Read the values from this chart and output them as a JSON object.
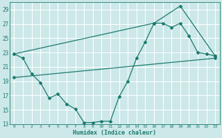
{
  "xlabel": "Humidex (Indice chaleur)",
  "bg_color": "#cce8e8",
  "grid_color": "#ffffff",
  "line_color": "#1a7a6e",
  "xlim": [
    -0.5,
    23.5
  ],
  "ylim": [
    13,
    30
  ],
  "yticks": [
    13,
    15,
    17,
    19,
    21,
    23,
    25,
    27,
    29
  ],
  "xticks": [
    0,
    1,
    2,
    3,
    4,
    5,
    6,
    7,
    8,
    9,
    10,
    11,
    12,
    13,
    14,
    15,
    16,
    17,
    18,
    19,
    20,
    21,
    22,
    23
  ],
  "line1_x": [
    0,
    1,
    2,
    3,
    4,
    5,
    6,
    7,
    8,
    9,
    10,
    11,
    12,
    13,
    14,
    15,
    16,
    17,
    18,
    19,
    20,
    21,
    22,
    23
  ],
  "line1_y": [
    22.8,
    22.2,
    20.0,
    18.8,
    16.6,
    17.2,
    15.8,
    15.1,
    13.2,
    13.2,
    13.4,
    13.4,
    16.8,
    19.0,
    22.2,
    24.5,
    27.1,
    27.1,
    26.5,
    27.1,
    25.3,
    23.0,
    22.8,
    22.5
  ],
  "line2_x": [
    0,
    16,
    19,
    23
  ],
  "line2_y": [
    22.8,
    27.1,
    29.5,
    22.5
  ],
  "line3_x": [
    0,
    23
  ],
  "line3_y": [
    19.5,
    22.2
  ]
}
